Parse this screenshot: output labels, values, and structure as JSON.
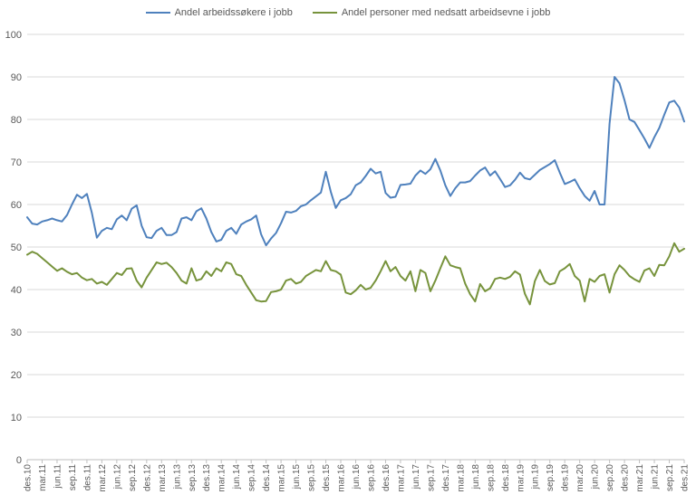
{
  "legend": {
    "items": [
      {
        "label": "Andel arbeidssøkere i jobb",
        "color": "#4f81bd"
      },
      {
        "label": "Andel personer med nedsatt arbeidsevne i jobb",
        "color": "#77933c"
      }
    ]
  },
  "axis_style": {
    "text_color": "#595959",
    "grid_color": "#d9d9d9",
    "axis_color": "#bfbfbf"
  },
  "chart_data": {
    "type": "line",
    "title": "",
    "xlabel": "",
    "ylabel": "",
    "ylim": [
      0,
      100
    ],
    "y_ticks": [
      0,
      10,
      20,
      30,
      40,
      50,
      60,
      70,
      80,
      90,
      100
    ],
    "grid": true,
    "legend_position": "top",
    "x_frequency": "monthly",
    "x_start_label": "des.10",
    "x_end_label": "des.21",
    "x_tick_labels": [
      "des.10",
      "mar.11",
      "jun.11",
      "sep.11",
      "des.11",
      "mar.12",
      "jun.12",
      "sep.12",
      "des.12",
      "mar.13",
      "jun.13",
      "sep.13",
      "des.13",
      "mar.14",
      "jun.14",
      "sep.14",
      "des.14",
      "mar.15",
      "jun.15",
      "sep.15",
      "des.15",
      "mar.16",
      "jun.16",
      "sep.16",
      "des.16",
      "mar.17",
      "jun.17",
      "sep.17",
      "des.17",
      "mar.18",
      "jun.18",
      "sep.18",
      "des.18",
      "mar.19",
      "jun.19",
      "sep.19",
      "des.19",
      "mar.20",
      "jun.20",
      "sep.20",
      "des.20",
      "mar.21",
      "jun.21",
      "sep.21",
      "des.21"
    ],
    "months_per_x_tick": 3,
    "series": [
      {
        "name": "Andel arbeidssøkere i jobb",
        "color": "#4f81bd",
        "values": [
          57.0,
          55.5,
          55.3,
          56.0,
          56.3,
          56.7,
          56.3,
          56.0,
          57.5,
          60.0,
          62.3,
          61.5,
          62.5,
          58.0,
          52.2,
          53.8,
          54.5,
          54.2,
          56.5,
          57.4,
          56.3,
          59.0,
          59.8,
          55.0,
          52.3,
          52.1,
          53.8,
          54.5,
          52.8,
          52.8,
          53.5,
          56.7,
          57.0,
          56.3,
          58.4,
          59.1,
          56.7,
          53.5,
          51.3,
          51.7,
          53.8,
          54.5,
          53.1,
          55.3,
          56.0,
          56.5,
          57.4,
          53.0,
          50.4,
          52.0,
          53.3,
          55.6,
          58.3,
          58.1,
          58.5,
          59.6,
          60.0,
          61.0,
          61.9,
          62.8,
          67.7,
          63.0,
          59.2,
          61.0,
          61.5,
          62.4,
          64.5,
          65.2,
          66.7,
          68.4,
          67.3,
          67.7,
          62.7,
          61.6,
          61.8,
          64.6,
          64.7,
          64.9,
          66.8,
          68.0,
          67.2,
          68.3,
          70.7,
          68.0,
          64.5,
          62.0,
          63.8,
          65.2,
          65.2,
          65.5,
          66.8,
          68.0,
          68.7,
          66.8,
          67.8,
          66.0,
          64.1,
          64.5,
          65.8,
          67.5,
          66.2,
          65.9,
          67.0,
          68.1,
          68.8,
          69.5,
          70.4,
          67.5,
          64.8,
          65.3,
          65.9,
          63.8,
          62.0,
          60.9,
          63.2,
          60.0,
          60.0,
          79.0,
          90.0,
          88.5,
          84.5,
          80.0,
          79.4,
          77.5,
          75.5,
          73.3,
          75.8,
          78.0,
          81.1,
          84.0,
          84.4,
          82.8,
          79.5
        ]
      },
      {
        "name": "Andel personer med nedsatt arbeidsevne i jobb",
        "color": "#77933c",
        "values": [
          48.2,
          48.9,
          48.4,
          47.4,
          46.4,
          45.4,
          44.4,
          45.0,
          44.2,
          43.6,
          43.9,
          42.8,
          42.2,
          42.5,
          41.4,
          41.8,
          41.1,
          42.5,
          43.9,
          43.4,
          44.9,
          45.0,
          42.1,
          40.5,
          42.8,
          44.6,
          46.4,
          46.0,
          46.3,
          45.3,
          43.9,
          42.1,
          41.4,
          45.0,
          42.1,
          42.5,
          44.3,
          43.2,
          45.0,
          44.3,
          46.4,
          46.0,
          43.6,
          43.2,
          41.1,
          39.3,
          37.5,
          37.2,
          37.3,
          39.4,
          39.6,
          40.0,
          42.1,
          42.5,
          41.4,
          41.8,
          43.2,
          43.9,
          44.6,
          44.3,
          46.7,
          44.6,
          44.3,
          43.5,
          39.3,
          38.9,
          39.8,
          41.1,
          40.0,
          40.4,
          42.1,
          44.3,
          46.7,
          44.3,
          45.3,
          43.2,
          42.1,
          44.3,
          39.6,
          44.6,
          43.9,
          39.6,
          42.1,
          45.0,
          47.8,
          45.7,
          45.3,
          45.0,
          41.4,
          38.9,
          37.2,
          41.3,
          39.6,
          40.3,
          42.5,
          42.8,
          42.5,
          43.0,
          44.3,
          43.5,
          39.0,
          36.5,
          42.0,
          44.6,
          42.0,
          41.2,
          41.5,
          44.3,
          45.0,
          46.0,
          43.2,
          42.1,
          37.2,
          42.5,
          41.8,
          43.2,
          43.6,
          39.3,
          43.6,
          45.7,
          44.6,
          43.2,
          42.4,
          41.8,
          44.5,
          45.0,
          43.2,
          45.8,
          45.7,
          47.8,
          50.9,
          48.9,
          49.6
        ]
      }
    ]
  }
}
